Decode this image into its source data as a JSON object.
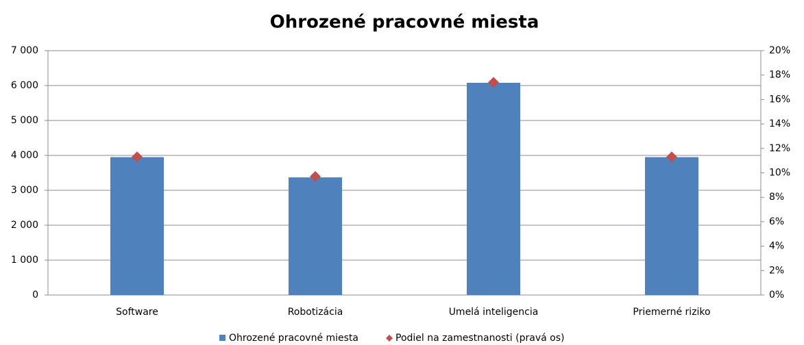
{
  "chart_data": {
    "type": "bar",
    "title": "Ohrozené pracovné miesta",
    "categories": [
      "Software",
      "Robotizácia",
      "Umelá inteligencia",
      "Priemerné riziko"
    ],
    "series": [
      {
        "name": "Ohrozené pracovné miesta",
        "color": "#4f81bd",
        "values": [
          3950,
          3370,
          6080,
          3950
        ]
      },
      {
        "name": "Podiel na zamestnanosti (pravá os)",
        "color": "#c0504d",
        "axis": "y2",
        "marker": "diamond",
        "values": [
          11.3,
          9.7,
          17.4,
          11.3
        ]
      }
    ],
    "ylim": [
      0,
      7000
    ],
    "yticks": [
      0,
      {
        "value": 1000,
        "label": "1 000"
      },
      {
        "value": 2000,
        "label": "2 000"
      },
      {
        "value": 3000,
        "label": "3 000"
      },
      {
        "value": 4000,
        "label": "4 000"
      },
      {
        "value": 5000,
        "label": "5 000"
      },
      {
        "value": 6000,
        "label": "6 000"
      },
      {
        "value": 7000,
        "label": "7 000"
      }
    ],
    "y2lim": [
      0,
      20
    ],
    "y2ticks": [
      {
        "value": 0,
        "label": "0%"
      },
      {
        "value": 2,
        "label": "2%"
      },
      {
        "value": 4,
        "label": "4%"
      },
      {
        "value": 6,
        "label": "6%"
      },
      {
        "value": 8,
        "label": "8%"
      },
      {
        "value": 10,
        "label": "10%"
      },
      {
        "value": 12,
        "label": "12%"
      },
      {
        "value": 14,
        "label": "14%"
      },
      {
        "value": 16,
        "label": "16%"
      },
      {
        "value": 18,
        "label": "18%"
      },
      {
        "value": 20,
        "label": "20%"
      }
    ],
    "grid": true,
    "legend": "bottom"
  }
}
